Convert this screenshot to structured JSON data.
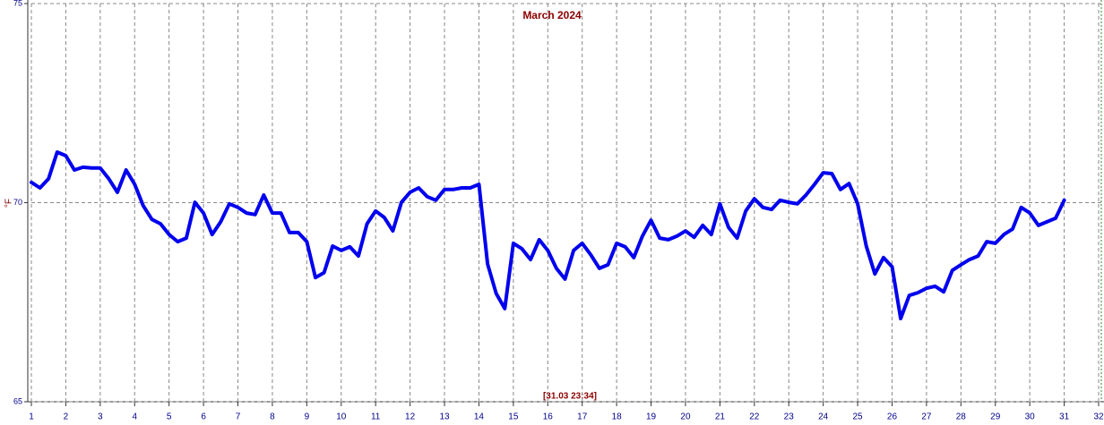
{
  "chart_data": {
    "type": "line",
    "title": "March 2024",
    "y_label": "°F",
    "annotation": "[31.03 23:34]",
    "xlim": [
      1,
      32
    ],
    "xticks": [
      1,
      2,
      3,
      4,
      5,
      6,
      7,
      8,
      9,
      10,
      11,
      12,
      13,
      14,
      15,
      16,
      17,
      18,
      19,
      20,
      21,
      22,
      23,
      24,
      25,
      26,
      27,
      28,
      29,
      30,
      31,
      32
    ],
    "ylim": [
      65,
      75
    ],
    "yticks": [
      65,
      70,
      75
    ],
    "grid": true,
    "series": [
      {
        "color": "#0000ee",
        "x": [
          1,
          1.25,
          1.5,
          1.75,
          2,
          2.25,
          2.5,
          2.75,
          3,
          3.25,
          3.5,
          3.75,
          4,
          4.25,
          4.5,
          4.75,
          5,
          5.25,
          5.5,
          5.75,
          6,
          6.25,
          6.5,
          6.75,
          7,
          7.25,
          7.5,
          7.75,
          8,
          8.25,
          8.5,
          8.75,
          9,
          9.25,
          9.5,
          9.75,
          10,
          10.25,
          10.5,
          10.75,
          11,
          11.25,
          11.5,
          11.75,
          12,
          12.25,
          12.5,
          12.75,
          13,
          13.25,
          13.5,
          13.75,
          14,
          14.25,
          14.5,
          14.75,
          15,
          15.25,
          15.5,
          15.75,
          16,
          16.25,
          16.5,
          16.75,
          17,
          17.25,
          17.5,
          17.75,
          18,
          18.25,
          18.5,
          18.75,
          19,
          19.25,
          19.5,
          19.75,
          20,
          20.25,
          20.5,
          20.75,
          21,
          21.25,
          21.5,
          21.75,
          22,
          22.25,
          22.5,
          22.75,
          23,
          23.25,
          23.5,
          23.75,
          24,
          24.25,
          24.5,
          24.75,
          25,
          25.25,
          25.5,
          25.75,
          26,
          26.25,
          26.5,
          26.75,
          27,
          27.25,
          27.5,
          27.75,
          28,
          28.25,
          28.5,
          28.75,
          29,
          29.25,
          29.5,
          29.75,
          30,
          30.25,
          30.5,
          30.75,
          31
        ],
        "values": [
          70.51,
          70.37,
          70.6,
          71.27,
          71.18,
          70.82,
          70.89,
          70.87,
          70.87,
          70.6,
          70.26,
          70.82,
          70.46,
          69.92,
          69.58,
          69.47,
          69.2,
          69.02,
          69.11,
          70.01,
          69.74,
          69.2,
          69.52,
          69.97,
          69.88,
          69.74,
          69.7,
          70.19,
          69.74,
          69.74,
          69.25,
          69.25,
          69.02,
          68.12,
          68.24,
          68.91,
          68.8,
          68.89,
          68.66,
          69.47,
          69.79,
          69.63,
          69.29,
          70.01,
          70.26,
          70.37,
          70.15,
          70.06,
          70.33,
          70.33,
          70.37,
          70.37,
          70.46,
          68.46,
          67.72,
          67.34,
          68.98,
          68.84,
          68.57,
          69.07,
          68.8,
          68.35,
          68.08,
          68.8,
          68.98,
          68.69,
          68.35,
          68.44,
          68.98,
          68.89,
          68.62,
          69.16,
          69.56,
          69.11,
          69.07,
          69.16,
          69.29,
          69.13,
          69.43,
          69.2,
          69.97,
          69.38,
          69.11,
          69.79,
          70.1,
          69.88,
          69.83,
          70.06,
          70.01,
          69.97,
          70.19,
          70.46,
          70.75,
          70.73,
          70.33,
          70.48,
          69.97,
          68.91,
          68.21,
          68.62,
          68.39,
          67.09,
          67.67,
          67.74,
          67.85,
          67.9,
          67.76,
          68.3,
          68.44,
          68.57,
          68.66,
          69.02,
          68.98,
          69.2,
          69.34,
          69.88,
          69.74,
          69.43,
          69.52,
          69.61,
          70.06
        ]
      }
    ]
  }
}
